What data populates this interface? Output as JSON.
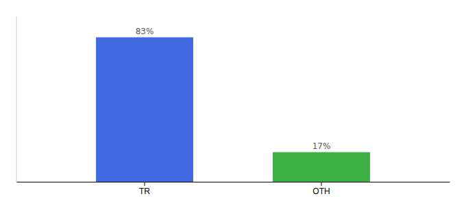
{
  "chart_data": {
    "type": "bar",
    "categories": [
      "TR",
      "OTH"
    ],
    "values": [
      83,
      17
    ],
    "value_labels": [
      "83%",
      "17%"
    ],
    "colors": [
      "#4169e1",
      "#3cb043"
    ],
    "ylim": [
      0,
      95
    ],
    "grid": false,
    "data_labels": true,
    "tick_labels": "x"
  }
}
